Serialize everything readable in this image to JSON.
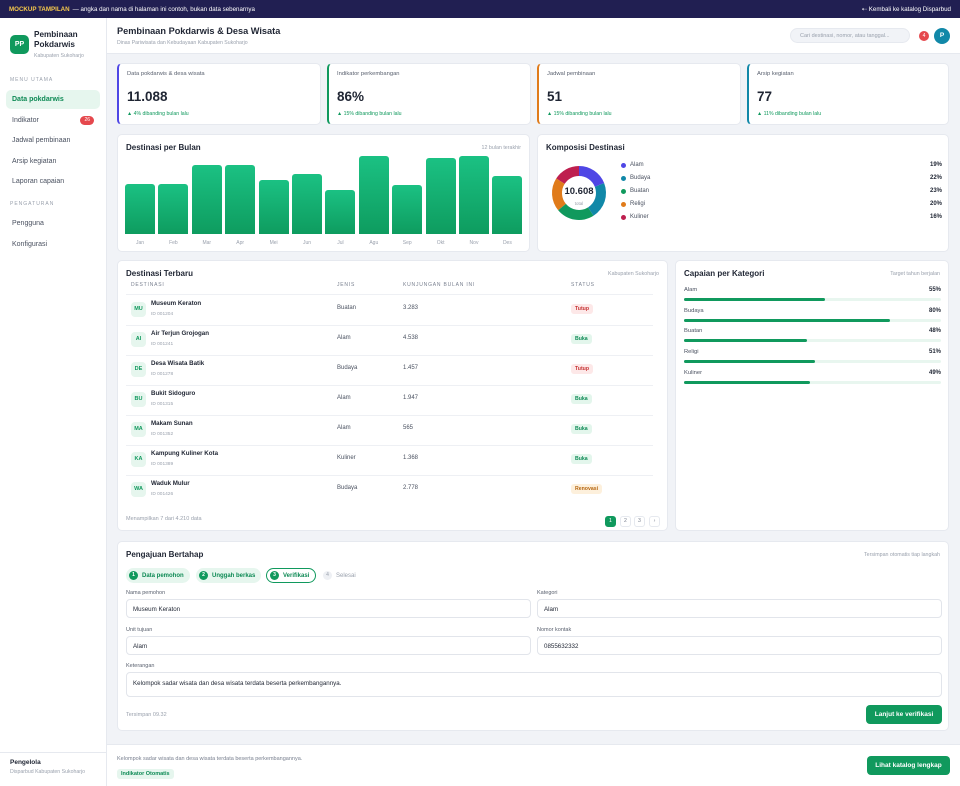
{
  "topbar": {
    "tag": "MOCKUP TAMPILAN",
    "note": "— angka dan nama di halaman ini contoh, bukan data sebenarnya",
    "back": "⇠ Kembali ke katalog Disparbud"
  },
  "brand": {
    "logo": "PP",
    "title": "Pembinaan Pokdarwis",
    "subtitle": "Kabupaten Sukoharjo"
  },
  "menu": {
    "section_main": "MENU UTAMA",
    "items": [
      {
        "label": "Data pokdarwis"
      },
      {
        "label": "Indikator",
        "badge": "26"
      },
      {
        "label": "Jadwal pembinaan"
      },
      {
        "label": "Arsip kegiatan"
      },
      {
        "label": "Laporan capaian"
      }
    ],
    "section_settings": "PENGATURAN",
    "settings": [
      {
        "label": "Pengguna"
      },
      {
        "label": "Konfigurasi"
      }
    ]
  },
  "sidebar_footer": {
    "name": "Pengelola",
    "role": "Disparbud Kabupaten Sukoharjo"
  },
  "header": {
    "title": "Pembinaan Pokdarwis & Desa Wisata",
    "subtitle": "Dinas Pariwisata dan Kebudayaan Kabupaten Sukoharjo",
    "search_placeholder": "Cari destinasi, nomor, atau tanggal...",
    "notifications": "4",
    "avatar": "P"
  },
  "kpis": [
    {
      "title": "Data pokdarwis & desa wisata",
      "value": "11.088",
      "delta": "▲ 4% dibanding bulan lalu",
      "color": "#4f46e5"
    },
    {
      "title": "Indikator perkembangan",
      "value": "86%",
      "delta": "▲ 15% dibanding bulan lalu",
      "color": "#10995d"
    },
    {
      "title": "Jadwal pembinaan",
      "value": "51",
      "delta": "▲ 15% dibanding bulan lalu",
      "color": "#e07b1a"
    },
    {
      "title": "Arsip kegiatan",
      "value": "77",
      "delta": "▲ 11% dibanding bulan lalu",
      "color": "#1188a8"
    }
  ],
  "chart_data": [
    {
      "type": "bar",
      "title": "Destinasi per Bulan",
      "subtitle": "12 bulan terakhir",
      "categories": [
        "Jan",
        "Feb",
        "Mar",
        "Apr",
        "Mei",
        "Jun",
        "Jul",
        "Agu",
        "Sep",
        "Okt",
        "Nov",
        "Des"
      ],
      "values": [
        65,
        65,
        90,
        89,
        70,
        78,
        57,
        101,
        64,
        98,
        101,
        75
      ]
    },
    {
      "type": "pie",
      "title": "Komposisi Destinasi",
      "total": "10.608",
      "total_label": "total",
      "labels": [
        "Alam",
        "Budaya",
        "Buatan",
        "Religi",
        "Kuliner"
      ],
      "values": [
        19,
        22,
        23,
        20,
        16
      ],
      "colors": [
        "#4f46e5",
        "#1188a8",
        "#10995d",
        "#e07b1a",
        "#be1f4f"
      ]
    }
  ],
  "table": {
    "title": "Destinasi Terbaru",
    "subtitle": "Kabupaten Sukoharjo",
    "columns": [
      "DESTINASI",
      "JENIS",
      "KUNJUNGAN BULAN INI",
      "STATUS"
    ],
    "rows": [
      {
        "initials": "MU",
        "name": "Museum Keraton",
        "id": "ID 001204",
        "type": "Buatan",
        "visits": "3.283",
        "status": "Tutup"
      },
      {
        "initials": "AI",
        "name": "Air Terjun Grojogan",
        "id": "ID 001241",
        "type": "Alam",
        "visits": "4.538",
        "status": "Buka"
      },
      {
        "initials": "DE",
        "name": "Desa Wisata Batik",
        "id": "ID 001278",
        "type": "Budaya",
        "visits": "1.457",
        "status": "Tutup"
      },
      {
        "initials": "BU",
        "name": "Bukit Sidoguro",
        "id": "ID 001315",
        "type": "Alam",
        "visits": "1.947",
        "status": "Buka"
      },
      {
        "initials": "MA",
        "name": "Makam Sunan",
        "id": "ID 001352",
        "type": "Alam",
        "visits": "565",
        "status": "Buka"
      },
      {
        "initials": "KA",
        "name": "Kampung Kuliner Kota",
        "id": "ID 001389",
        "type": "Kuliner",
        "visits": "1.368",
        "status": "Buka"
      },
      {
        "initials": "WA",
        "name": "Waduk Mulur",
        "id": "ID 001426",
        "type": "Budaya",
        "visits": "2.778",
        "status": "Renovasi"
      }
    ],
    "footer": "Menampilkan 7 dari 4.210 data",
    "pages": [
      "1",
      "2",
      "3",
      "›"
    ]
  },
  "status_colors": {
    "Tutup": {
      "bg": "#fde8e8",
      "fg": "#c53030"
    },
    "Buka": {
      "bg": "#e3f6ec",
      "fg": "#0e8a55"
    },
    "Renovasi": {
      "bg": "#fdf0dc",
      "fg": "#b5650f"
    }
  },
  "achievements": {
    "title": "Capaian per Kategori",
    "subtitle": "Target tahun berjalan",
    "items": [
      {
        "label": "Alam",
        "percent": 55
      },
      {
        "label": "Budaya",
        "percent": 80
      },
      {
        "label": "Buatan",
        "percent": 48
      },
      {
        "label": "Religi",
        "percent": 51
      },
      {
        "label": "Kuliner",
        "percent": 49
      }
    ]
  },
  "form": {
    "title": "Pengajuan Bertahap",
    "subtitle": "Tersimpan otomatis tiap langkah",
    "steps": [
      {
        "num": "1",
        "label": "Data pemohon"
      },
      {
        "num": "2",
        "label": "Unggah berkas"
      },
      {
        "num": "3",
        "label": "Verifikasi"
      },
      {
        "num": "4",
        "label": "Selesai"
      }
    ],
    "fields": {
      "nama_label": "Nama pemohon",
      "nama_value": "Museum Keraton",
      "kategori_label": "Kategori",
      "kategori_value": "Alam",
      "unit_label": "Unit tujuan",
      "unit_value": "Alam",
      "kontak_label": "Nomor kontak",
      "kontak_value": "0855632332",
      "ket_label": "Keterangan",
      "ket_value": "Kelompok sadar wisata dan desa wisata terdata beserta perkembangannya."
    },
    "saved": "Tersimpan 09.32",
    "submit": "Lanjut ke verifikasi"
  },
  "footer": {
    "text": "Kelompok sadar wisata dan desa wisata terdata beserta perkembangannya.",
    "chip": "Indikator Otomatis",
    "button": "Lihat katalog lengkap"
  }
}
